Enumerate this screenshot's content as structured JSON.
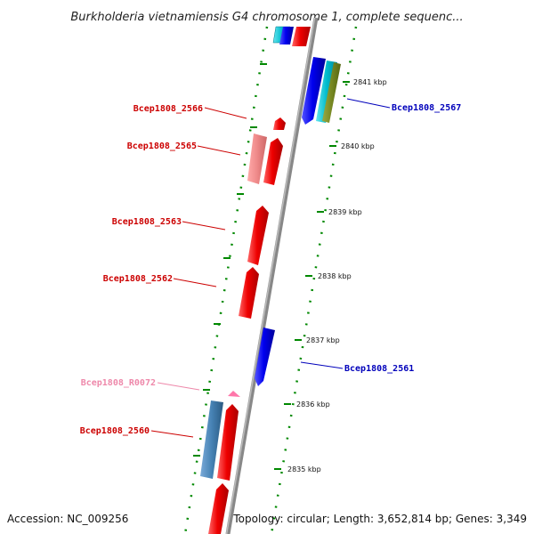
{
  "title": "Burkholderia vietnamiensis G4 chromosome 1, complete sequenc...",
  "footer": {
    "accession": "Accession: NC_009256",
    "topology": "Topology: circular; Length: 3,652,814 bp; Genes: 3,349"
  },
  "ticks": [
    "2841 kbp",
    "2840 kbp",
    "2839 kbp",
    "2838 kbp",
    "2837 kbp",
    "2836 kbp",
    "2835 kbp"
  ],
  "gene_labels": [
    {
      "text": "Bcep1808_2566",
      "color": "#cc0000"
    },
    {
      "text": "Bcep1808_2565",
      "color": "#cc0000"
    },
    {
      "text": "Bcep1808_2563",
      "color": "#cc0000"
    },
    {
      "text": "Bcep1808_2562",
      "color": "#cc0000"
    },
    {
      "text": "Bcep1808_R0072",
      "color": "#ee88aa"
    },
    {
      "text": "Bcep1808_2560",
      "color": "#cc0000"
    },
    {
      "text": "Bcep1808_2567",
      "color": "#0000bb"
    },
    {
      "text": "Bcep1808_2561",
      "color": "#0000bb"
    }
  ],
  "colors": {
    "forward_gene": "#ee0000",
    "reverse_gene": "#0000ee",
    "rna_gene": "#ff8899",
    "steelblue_gene": "#4682b4",
    "cyan_gene": "#00bbcc",
    "olive_gene": "#778822",
    "backbone": "#999999",
    "tick_marks": "#008800"
  }
}
